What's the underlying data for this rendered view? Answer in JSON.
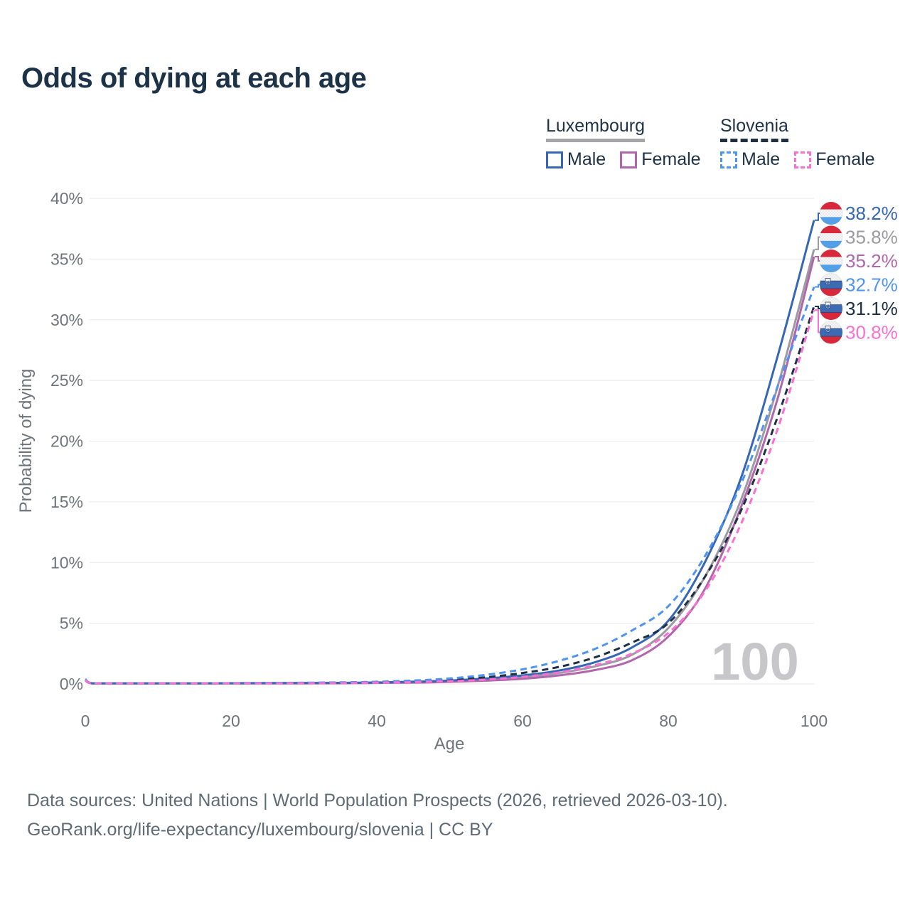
{
  "title": "Odds of dying at each age",
  "watermark": "100",
  "legend": {
    "groups": [
      {
        "name": "Luxembourg",
        "line_style": "solid",
        "line_color": "#a5a5a9",
        "items": [
          {
            "label": "Male",
            "color": "#3667b5",
            "dashed": false
          },
          {
            "label": "Female",
            "color": "#b066ab",
            "dashed": false
          }
        ]
      },
      {
        "name": "Slovenia",
        "line_style": "dashed",
        "line_color": "#1e3042",
        "items": [
          {
            "label": "Male",
            "color": "#4f93f2",
            "dashed": true
          },
          {
            "label": "Female",
            "color": "#fa70d2",
            "dashed": true
          }
        ]
      }
    ]
  },
  "chart_data": {
    "type": "line",
    "title": "Odds of dying at each age",
    "xlabel": "Age",
    "ylabel": "Probability of dying",
    "xlim": [
      0,
      100
    ],
    "ylim": [
      0,
      40
    ],
    "grid": "horizontal",
    "xticks": [
      0,
      20,
      40,
      60,
      80,
      100
    ],
    "yticks": [
      {
        "value": 0,
        "label": "0%"
      },
      {
        "value": 5,
        "label": "5%"
      },
      {
        "value": 10,
        "label": "10%"
      },
      {
        "value": 15,
        "label": "15%"
      },
      {
        "value": 20,
        "label": "20%"
      },
      {
        "value": 25,
        "label": "25%"
      },
      {
        "value": 30,
        "label": "30%"
      },
      {
        "value": 35,
        "label": "35%"
      },
      {
        "value": 40,
        "label": "40%"
      }
    ],
    "ages": [
      0,
      1,
      5,
      10,
      15,
      20,
      25,
      30,
      35,
      40,
      45,
      50,
      55,
      60,
      65,
      70,
      75,
      80,
      85,
      90,
      95,
      100
    ],
    "series": [
      {
        "name": "Luxembourg",
        "country": "Luxembourg",
        "sex": "",
        "flag": "luxembourg",
        "color": "#9b9ba1",
        "dashed": false,
        "end_label": "35.8%",
        "values": [
          0.31,
          0.03,
          0.01,
          0.01,
          0.02,
          0.04,
          0.05,
          0.06,
          0.07,
          0.1,
          0.14,
          0.22,
          0.35,
          0.55,
          0.9,
          1.45,
          2.4,
          4.6,
          8.8,
          15.2,
          24.5,
          35.8
        ]
      },
      {
        "name": "Luxembourg Female",
        "country": "Luxembourg",
        "sex": "Female",
        "flag": "luxembourg",
        "color": "#b066ab",
        "dashed": false,
        "end_label": "35.2%",
        "values": [
          0.28,
          0.02,
          0.01,
          0.01,
          0.02,
          0.03,
          0.03,
          0.04,
          0.05,
          0.08,
          0.11,
          0.17,
          0.27,
          0.42,
          0.7,
          1.15,
          1.95,
          3.9,
          7.8,
          14.6,
          23.5,
          35.2
        ]
      },
      {
        "name": "Luxembourg Male",
        "country": "Luxembourg",
        "sex": "Male",
        "flag": "luxembourg",
        "color": "#3667b5",
        "dashed": false,
        "end_label": "38.2%",
        "values": [
          0.35,
          0.03,
          0.01,
          0.01,
          0.03,
          0.06,
          0.07,
          0.08,
          0.09,
          0.12,
          0.18,
          0.28,
          0.45,
          0.7,
          1.1,
          1.8,
          3.0,
          5.2,
          10.0,
          17.0,
          27.0,
          38.2
        ]
      },
      {
        "name": "Slovenia",
        "country": "Slovenia",
        "sex": "",
        "flag": "slovenia",
        "color": "#1e3042",
        "dashed": true,
        "end_label": "31.1%",
        "values": [
          0.35,
          0.03,
          0.01,
          0.01,
          0.03,
          0.05,
          0.06,
          0.08,
          0.1,
          0.14,
          0.21,
          0.34,
          0.55,
          0.9,
          1.4,
          2.2,
          3.4,
          5.0,
          8.8,
          14.3,
          22.0,
          31.1
        ]
      },
      {
        "name": "Slovenia Male",
        "country": "Slovenia",
        "sex": "Male",
        "flag": "slovenia",
        "color": "#4f93f2",
        "dashed": true,
        "end_label": "32.7%",
        "values": [
          0.4,
          0.03,
          0.01,
          0.01,
          0.03,
          0.07,
          0.08,
          0.1,
          0.13,
          0.18,
          0.28,
          0.45,
          0.75,
          1.2,
          1.9,
          2.9,
          4.4,
          6.4,
          10.5,
          16.5,
          24.5,
          32.7
        ]
      },
      {
        "name": "Slovenia Female",
        "country": "Slovenia",
        "sex": "Female",
        "flag": "slovenia",
        "color": "#fa70d2",
        "dashed": true,
        "end_label": "30.8%",
        "values": [
          0.3,
          0.02,
          0.01,
          0.01,
          0.02,
          0.04,
          0.04,
          0.05,
          0.07,
          0.1,
          0.15,
          0.23,
          0.36,
          0.58,
          0.95,
          1.55,
          2.5,
          4.2,
          7.6,
          13.2,
          21.0,
          30.8
        ]
      }
    ],
    "legend_position": "top-right"
  },
  "footer": {
    "line1": "Data sources: United Nations | World Population Prospects (2026, retrieved 2026-03-10).",
    "line2": "GeoRank.org/life-expectancy/luxembourg/slovenia | CC BY"
  }
}
